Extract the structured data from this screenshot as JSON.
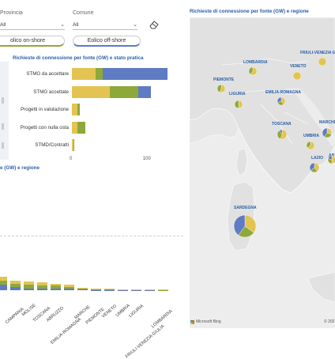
{
  "filters": {
    "provincia": {
      "label": "Provincia",
      "value": "All"
    },
    "comune": {
      "label": "Comune",
      "value": "All"
    }
  },
  "toggles": {
    "onshore_label": "olico on-shore",
    "offshore_label": "Eolico off-shore"
  },
  "colors": {
    "green": "#8fa83a",
    "yellow": "#e3c452",
    "blue": "#5f7bc4",
    "map_land": "#e4e4e4",
    "map_sea": "#ededed",
    "title_blue": "#2a5ea8"
  },
  "icons": {
    "eraser": "eraser-icon",
    "chevron": "chevron-down-icon",
    "microsoft_bing": "microsoft-bing-logo"
  },
  "bar_chart": {
    "title": "Richieste di connessione per fonte (GW) e stato pratica",
    "x_ticks": [
      "0",
      "100"
    ],
    "chart_data": {
      "type": "bar",
      "orientation": "horizontal",
      "stacked": true,
      "categories": [
        "STMG da accettare",
        "STMG accettate",
        "Progetti in valutazione",
        "Progetti con nulla osta",
        "STMD/Contratti"
      ],
      "series": [
        {
          "color": "#e3c452",
          "values": [
            32,
            52,
            7,
            8,
            2
          ]
        },
        {
          "color": "#8fa83a",
          "values": [
            10,
            38,
            4,
            10,
            1
          ]
        },
        {
          "color": "#5f7bc4",
          "values": [
            88,
            18,
            0,
            0,
            0
          ]
        }
      ],
      "xlim": [
        0,
        140
      ]
    }
  },
  "region_chart": {
    "title": "e (GW) e regione",
    "chart_data": {
      "type": "bar",
      "stacked": true,
      "categories": [
        "",
        "CAMPANIA",
        "MOLISE",
        "TOSCANA",
        "ABRUZZO",
        "EMILIA-ROMAGNA",
        "MARCHE",
        "PIEMONTE",
        "VENETO",
        "UMBRIA",
        "LIGURIA",
        "FRIULI-VENEZIA GIULIA",
        "LOMBARDIA"
      ],
      "series": [
        {
          "color": "#5f7bc4",
          "values": [
            6,
            3,
            2,
            2,
            2,
            1.5,
            0.5,
            0.3,
            0.2,
            0.1,
            0.3,
            0.1,
            0.1
          ]
        },
        {
          "color": "#8fa83a",
          "values": [
            4,
            4,
            4,
            3,
            3,
            2,
            1,
            0.8,
            0.6,
            0.5,
            0.4,
            0.4,
            0.3
          ]
        },
        {
          "color": "#e3c452",
          "values": [
            4,
            3,
            3,
            3,
            2,
            2,
            1.2,
            0.8,
            0.7,
            0.5,
            0.4,
            0.4,
            0.3
          ]
        }
      ]
    }
  },
  "map": {
    "title": "Richieste di connessione per fonte (GW) e regione",
    "attribution": "Microsoft Bing",
    "copyright": "© 202",
    "regions": [
      {
        "name": "LOMBARDIA",
        "pie": [
          0.6,
          0.4,
          0.0
        ]
      },
      {
        "name": "FRIULI-VENEZIA GIU",
        "pie": [
          1.0,
          0.0,
          0.0
        ]
      },
      {
        "name": "PIEMONTE",
        "pie": [
          0.55,
          0.45,
          0.0
        ]
      },
      {
        "name": "VENETO",
        "pie": [
          1.0,
          0.0,
          0.0
        ]
      },
      {
        "name": "LIGURIA",
        "pie": [
          0.5,
          0.5,
          0.0
        ]
      },
      {
        "name": "EMILIA-ROMAGNA",
        "pie": [
          0.4,
          0.3,
          0.3
        ]
      },
      {
        "name": "TOSCANA",
        "pie": [
          0.55,
          0.35,
          0.1
        ]
      },
      {
        "name": "MARCHE",
        "pie": [
          0.3,
          0.3,
          0.4
        ]
      },
      {
        "name": "UMBRIA",
        "pie": [
          0.65,
          0.35,
          0.0
        ]
      },
      {
        "name": "LAZIO",
        "pie": [
          0.4,
          0.25,
          0.35
        ]
      },
      {
        "name": "AB",
        "pie": [
          0.5,
          0.3,
          0.2
        ]
      },
      {
        "name": "SARDEGNA",
        "pie": [
          0.35,
          0.25,
          0.4
        ]
      }
    ]
  }
}
